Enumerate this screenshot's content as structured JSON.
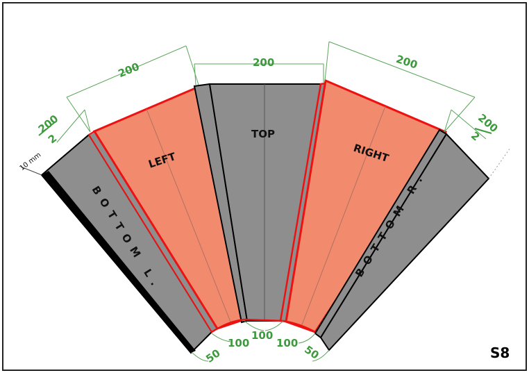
{
  "diagram": {
    "page_id": "S8",
    "panels": {
      "top": "TOP",
      "left": "LEFT",
      "right": "RIGHT",
      "bottom_left": "BOTTOM L.",
      "bottom_right": "BOTTOM R."
    },
    "dimensions": {
      "top_width": "200",
      "left_width": "200",
      "right_width": "200",
      "left_half_num": "200",
      "left_half_den": "2",
      "right_half_num": "200",
      "right_half_den": "2",
      "bottom_left": "50",
      "bottom_left_center": "100",
      "bottom_center": "100",
      "bottom_right_center": "100",
      "bottom_right": "50",
      "thickness": "10 mm"
    },
    "colors": {
      "panel_gray": "#8e8e8e",
      "side_salmon": "#f28a6e",
      "outline_red": "#ee1111",
      "dimension_green": "#3c9a3c",
      "edge_black": "#000000"
    }
  }
}
